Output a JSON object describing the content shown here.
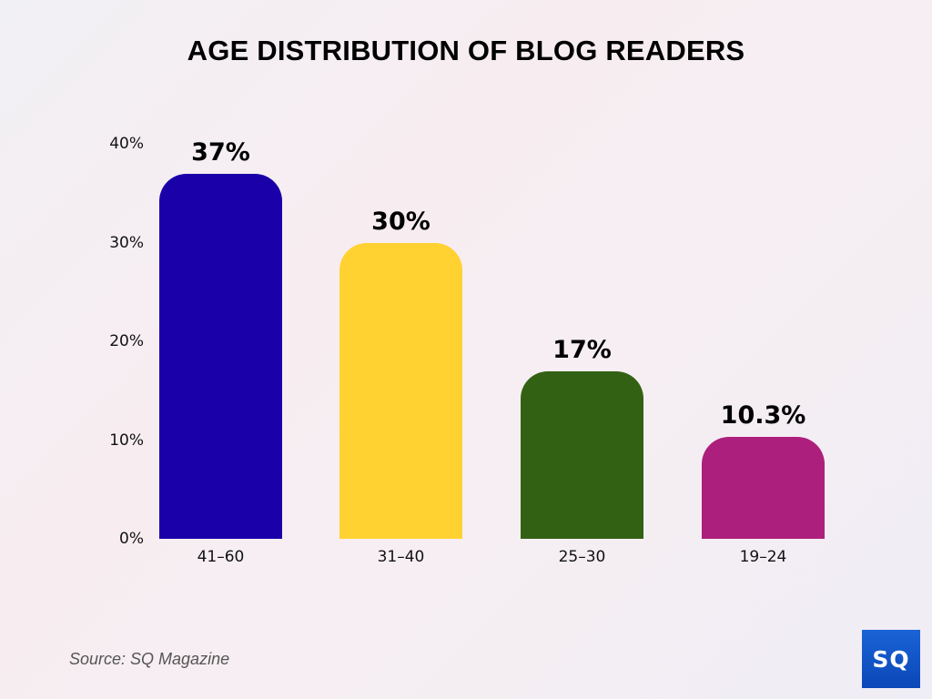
{
  "title": "AGE DISTRIBUTION OF BLOG READERS",
  "source": "Source: SQ Magazine",
  "logo": {
    "text": "SQ",
    "color": "#0f52c4"
  },
  "chart_data": {
    "type": "bar",
    "title": "AGE DISTRIBUTION OF BLOG READERS",
    "xlabel": "",
    "ylabel": "",
    "categories": [
      "41–60",
      "31–40",
      "25–30",
      "19–24"
    ],
    "values": [
      37,
      30,
      17,
      10.3
    ],
    "value_labels": [
      "37%",
      "30%",
      "17%",
      "10.3%"
    ],
    "colors": [
      "#1a00a8",
      "#ffd232",
      "#336113",
      "#ad1f7c"
    ],
    "ylim": [
      0,
      40
    ],
    "yticks": [
      "0%",
      "10%",
      "20%",
      "30%",
      "40%"
    ],
    "grid": false,
    "legend": "none"
  }
}
